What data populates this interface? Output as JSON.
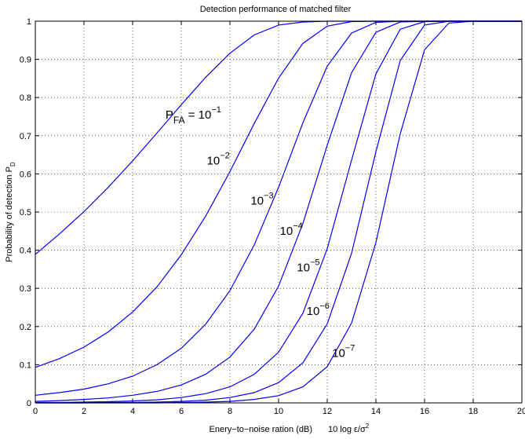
{
  "chart_data": {
    "type": "line",
    "title": "Detection performance of matched filter",
    "xlabel": "Enery−to−noise ration (dB)",
    "xlabel_formula": "10 log ε/σ",
    "xlabel_formula_sup": "2",
    "ylabel": "Probability of detection P",
    "ylabel_sub": "D",
    "xlim": [
      0,
      20
    ],
    "ylim": [
      0,
      1
    ],
    "x_ticks": [
      0,
      2,
      4,
      6,
      8,
      10,
      12,
      14,
      16,
      18,
      20
    ],
    "x_tick_labels": [
      "0",
      "2",
      "4",
      "6",
      "8",
      "10",
      "12",
      "14",
      "16",
      "18",
      "20"
    ],
    "y_ticks": [
      0,
      0.1,
      0.2,
      0.3,
      0.4,
      0.5,
      0.6,
      0.7,
      0.8,
      0.9,
      1
    ],
    "y_tick_labels": [
      "0",
      "0.1",
      "0.2",
      "0.3",
      "0.4",
      "0.5",
      "0.6",
      "0.7",
      "0.8",
      "0.9",
      "1"
    ],
    "grid": true,
    "line_color": "#0000ff",
    "x": [
      0,
      1,
      2,
      3,
      4,
      5,
      6,
      7,
      8,
      9,
      10,
      11,
      12,
      13,
      14,
      15,
      16,
      17,
      18,
      19,
      20
    ],
    "series": [
      {
        "pfa": 0.1,
        "values": [
          0.389,
          0.443,
          0.501,
          0.565,
          0.634,
          0.707,
          0.781,
          0.853,
          0.916,
          0.964,
          0.99,
          0.998,
          1.0,
          1.0,
          1.0,
          1.0,
          1.0,
          1.0,
          1.0,
          1.0,
          1.0
        ]
      },
      {
        "pfa": 0.01,
        "values": [
          0.093,
          0.116,
          0.146,
          0.186,
          0.238,
          0.304,
          0.388,
          0.489,
          0.606,
          0.732,
          0.851,
          0.942,
          0.987,
          0.999,
          1.0,
          1.0,
          1.0,
          1.0,
          1.0,
          1.0,
          1.0
        ]
      },
      {
        "pfa": 0.001,
        "values": [
          0.02,
          0.027,
          0.036,
          0.05,
          0.07,
          0.1,
          0.143,
          0.206,
          0.294,
          0.414,
          0.565,
          0.734,
          0.882,
          0.969,
          0.997,
          1.0,
          1.0,
          1.0,
          1.0,
          1.0,
          1.0
        ]
      },
      {
        "pfa": 0.0001,
        "values": [
          0.004,
          0.006,
          0.009,
          0.013,
          0.02,
          0.03,
          0.047,
          0.075,
          0.12,
          0.193,
          0.306,
          0.47,
          0.675,
          0.865,
          0.971,
          0.998,
          1.0,
          1.0,
          1.0,
          1.0,
          1.0
        ]
      },
      {
        "pfa": 1e-05,
        "values": [
          0.001,
          0.001,
          0.002,
          0.003,
          0.005,
          0.008,
          0.014,
          0.024,
          0.042,
          0.075,
          0.133,
          0.235,
          0.404,
          0.636,
          0.862,
          0.979,
          0.999,
          1.0,
          1.0,
          1.0,
          1.0
        ]
      },
      {
        "pfa": 1e-06,
        "values": [
          0.0,
          0.0,
          0.0,
          0.001,
          0.001,
          0.002,
          0.004,
          0.007,
          0.014,
          0.027,
          0.053,
          0.105,
          0.207,
          0.392,
          0.658,
          0.897,
          0.99,
          1.0,
          1.0,
          1.0,
          1.0
        ]
      },
      {
        "pfa": 1e-07,
        "values": [
          0.0,
          0.0,
          0.0,
          0.0,
          0.0,
          0.0,
          0.001,
          0.002,
          0.004,
          0.009,
          0.019,
          0.042,
          0.095,
          0.209,
          0.42,
          0.705,
          0.925,
          0.995,
          1.0,
          1.0,
          1.0
        ]
      }
    ],
    "annotations": [
      {
        "id": "p1",
        "prefix": "P",
        "prefix_sub": "FA",
        "prefix_eq": " = ",
        "base": "10",
        "exp": "−1",
        "x": 5.35,
        "y": 0.745
      },
      {
        "id": "p2",
        "base": "10",
        "exp": "−2",
        "x": 7.05,
        "y": 0.625
      },
      {
        "id": "p3",
        "base": "10",
        "exp": "−3",
        "x": 8.85,
        "y": 0.52
      },
      {
        "id": "p4",
        "base": "10",
        "exp": "−4",
        "x": 10.05,
        "y": 0.44
      },
      {
        "id": "p5",
        "base": "10",
        "exp": "−5",
        "x": 10.75,
        "y": 0.345
      },
      {
        "id": "p6",
        "base": "10",
        "exp": "−6",
        "x": 11.15,
        "y": 0.23
      },
      {
        "id": "p7",
        "base": "10",
        "exp": "−7",
        "x": 12.2,
        "y": 0.12
      }
    ]
  }
}
